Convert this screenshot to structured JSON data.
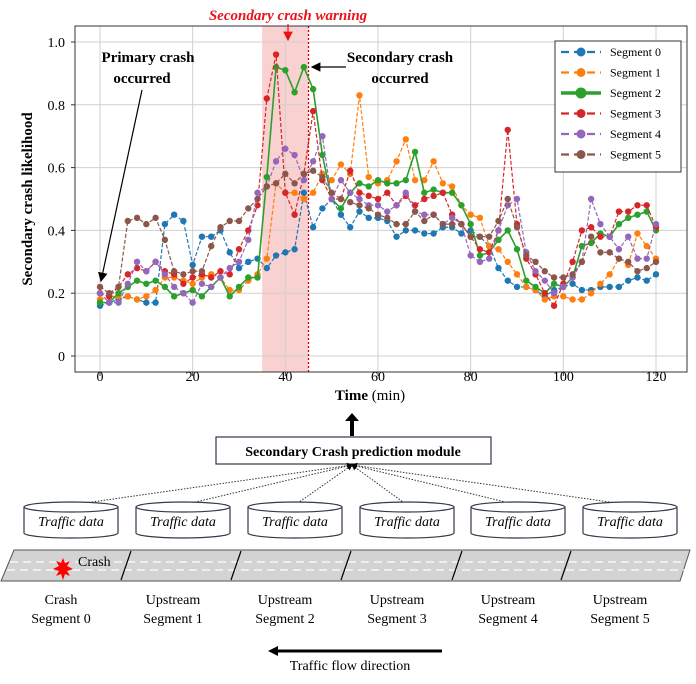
{
  "chart_data": {
    "type": "line",
    "xlabel_bold": "Time",
    "xlabel_rest": " (min)",
    "ylabel": "Secondary crash likelihood",
    "xlim": [
      -5,
      125
    ],
    "ylim": [
      0,
      1.0
    ],
    "xticks": [
      0,
      20,
      40,
      60,
      80,
      100,
      120
    ],
    "yticks": [
      0,
      0.2,
      0.4,
      0.6,
      0.8,
      1.0
    ],
    "ytick_labels": [
      "0",
      "0.2",
      "0.4",
      "0.6",
      "0.8",
      "1.0"
    ],
    "grid": true,
    "legend_position": "top-right",
    "warning_window": [
      35,
      45
    ],
    "secondary_crash_time": 45,
    "x": [
      0,
      2,
      4,
      6,
      8,
      10,
      12,
      14,
      16,
      18,
      20,
      22,
      24,
      26,
      28,
      30,
      32,
      34,
      36,
      38,
      40,
      42,
      44,
      46,
      48,
      50,
      52,
      54,
      56,
      58,
      60,
      62,
      64,
      66,
      68,
      70,
      72,
      74,
      76,
      78,
      80,
      82,
      84,
      86,
      88,
      90,
      92,
      94,
      96,
      98,
      100,
      102,
      104,
      106,
      108,
      110,
      112,
      114,
      116,
      118,
      120
    ],
    "series": [
      {
        "name": "Segment 0",
        "color": "#1f77b4",
        "style": "dashed",
        "values": [
          0.16,
          0.17,
          0.18,
          0.19,
          0.18,
          0.17,
          0.17,
          0.42,
          0.45,
          0.43,
          0.29,
          0.38,
          0.38,
          0.4,
          0.33,
          0.28,
          0.3,
          0.31,
          0.28,
          0.32,
          0.33,
          0.34,
          0.52,
          0.41,
          0.47,
          0.5,
          0.45,
          0.41,
          0.46,
          0.44,
          0.44,
          0.43,
          0.38,
          0.4,
          0.4,
          0.39,
          0.39,
          0.41,
          0.41,
          0.39,
          0.4,
          0.38,
          0.35,
          0.28,
          0.24,
          0.22,
          0.22,
          0.21,
          0.19,
          0.21,
          0.22,
          0.23,
          0.21,
          0.21,
          0.22,
          0.22,
          0.22,
          0.24,
          0.25,
          0.24,
          0.26
        ]
      },
      {
        "name": "Segment 1",
        "color": "#ff7f0e",
        "style": "dashed",
        "values": [
          0.18,
          0.19,
          0.19,
          0.19,
          0.18,
          0.19,
          0.21,
          0.25,
          0.25,
          0.24,
          0.23,
          0.25,
          0.26,
          0.25,
          0.21,
          0.21,
          0.24,
          0.26,
          0.31,
          0.55,
          0.52,
          0.52,
          0.5,
          0.52,
          0.58,
          0.56,
          0.61,
          0.58,
          0.83,
          0.57,
          0.55,
          0.56,
          0.62,
          0.69,
          0.56,
          0.56,
          0.62,
          0.55,
          0.54,
          0.48,
          0.45,
          0.44,
          0.35,
          0.34,
          0.3,
          0.26,
          0.22,
          0.21,
          0.18,
          0.19,
          0.19,
          0.18,
          0.18,
          0.2,
          0.23,
          0.26,
          0.31,
          0.29,
          0.39,
          0.35,
          0.31
        ]
      },
      {
        "name": "Segment 2",
        "color": "#2ca02c",
        "style": "solid",
        "values": [
          0.17,
          0.17,
          0.2,
          0.22,
          0.24,
          0.23,
          0.24,
          0.22,
          0.19,
          0.2,
          0.21,
          0.19,
          0.22,
          0.25,
          0.19,
          0.22,
          0.25,
          0.25,
          0.57,
          0.92,
          0.91,
          0.84,
          0.92,
          0.85,
          0.64,
          0.5,
          0.47,
          0.52,
          0.55,
          0.54,
          0.56,
          0.55,
          0.55,
          0.56,
          0.65,
          0.52,
          0.53,
          0.52,
          0.52,
          0.48,
          0.42,
          0.32,
          0.33,
          0.37,
          0.4,
          0.34,
          0.24,
          0.22,
          0.2,
          0.23,
          0.22,
          0.25,
          0.35,
          0.36,
          0.39,
          0.38,
          0.42,
          0.44,
          0.45,
          0.46,
          0.4
        ]
      },
      {
        "name": "Segment 3",
        "color": "#d62728",
        "style": "dashed",
        "values": [
          0.2,
          0.19,
          0.22,
          0.26,
          0.28,
          0.27,
          0.3,
          0.27,
          0.26,
          0.23,
          0.25,
          0.26,
          0.25,
          0.27,
          0.26,
          0.34,
          0.4,
          0.48,
          0.82,
          0.96,
          0.52,
          0.45,
          0.58,
          0.78,
          0.56,
          0.5,
          0.5,
          0.59,
          0.52,
          0.51,
          0.5,
          0.52,
          0.48,
          0.51,
          0.48,
          0.5,
          0.51,
          0.52,
          0.45,
          0.42,
          0.38,
          0.34,
          0.33,
          0.4,
          0.72,
          0.42,
          0.31,
          0.26,
          0.2,
          0.16,
          0.23,
          0.3,
          0.4,
          0.41,
          0.38,
          0.38,
          0.46,
          0.46,
          0.48,
          0.48,
          0.41
        ]
      },
      {
        "name": "Segment 4",
        "color": "#9467bd",
        "style": "dashed",
        "values": [
          0.2,
          0.17,
          0.17,
          0.23,
          0.3,
          0.27,
          0.3,
          0.26,
          0.22,
          0.2,
          0.17,
          0.23,
          0.22,
          0.25,
          0.28,
          0.3,
          0.37,
          0.52,
          0.54,
          0.62,
          0.66,
          0.64,
          0.56,
          0.62,
          0.7,
          0.5,
          0.56,
          0.52,
          0.5,
          0.48,
          0.48,
          0.46,
          0.48,
          0.52,
          0.46,
          0.45,
          0.45,
          0.42,
          0.44,
          0.42,
          0.32,
          0.3,
          0.31,
          0.4,
          0.48,
          0.5,
          0.33,
          0.27,
          0.24,
          0.2,
          0.22,
          0.25,
          0.3,
          0.5,
          0.42,
          0.38,
          0.34,
          0.38,
          0.31,
          0.31,
          0.42
        ]
      },
      {
        "name": "Segment 5",
        "color": "#8c564b",
        "style": "dashed",
        "values": [
          0.22,
          0.2,
          0.22,
          0.43,
          0.44,
          0.42,
          0.44,
          0.37,
          0.27,
          0.26,
          0.27,
          0.27,
          0.35,
          0.41,
          0.43,
          0.43,
          0.47,
          0.5,
          0.54,
          0.55,
          0.58,
          0.55,
          0.58,
          0.59,
          0.57,
          0.52,
          0.5,
          0.49,
          0.48,
          0.47,
          0.45,
          0.44,
          0.42,
          0.42,
          0.46,
          0.43,
          0.45,
          0.42,
          0.42,
          0.42,
          0.38,
          0.38,
          0.38,
          0.43,
          0.5,
          0.41,
          0.32,
          0.3,
          0.27,
          0.25,
          0.25,
          0.26,
          0.3,
          0.38,
          0.33,
          0.33,
          0.31,
          0.3,
          0.27,
          0.28,
          0.3
        ]
      }
    ],
    "annotations": {
      "warning": "Secondary crash warning",
      "warning_color": "#e8131b",
      "primary_line1": "Primary crash",
      "primary_line2": "occurred",
      "secondary_line1": "Secondary crash",
      "secondary_line2": "occurred"
    }
  },
  "diagram": {
    "module_label": "Secondary Crash prediction module",
    "data_label": "Traffic data",
    "crash_label": "Crash",
    "segments": [
      {
        "line1": "Crash",
        "line2": "Segment 0"
      },
      {
        "line1": "Upstream",
        "line2": "Segment 1"
      },
      {
        "line1": "Upstream",
        "line2": "Segment 2"
      },
      {
        "line1": "Upstream",
        "line2": "Segment 3"
      },
      {
        "line1": "Upstream",
        "line2": "Segment 4"
      },
      {
        "line1": "Upstream",
        "line2": "Segment 5"
      }
    ],
    "flow_label": "Traffic flow direction"
  }
}
